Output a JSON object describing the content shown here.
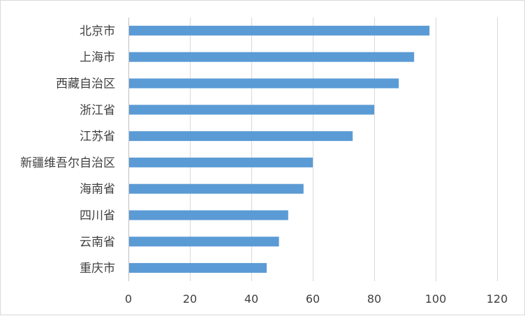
{
  "chart_data": {
    "type": "bar",
    "orientation": "horizontal",
    "categories": [
      "北京市",
      "上海市",
      "西藏自治区",
      "浙江省",
      "江苏省",
      "新疆维吾尔自治区",
      "海南省",
      "四川省",
      "云南省",
      "重庆市"
    ],
    "values": [
      98,
      93,
      88,
      80,
      73,
      60,
      57,
      52,
      49,
      45
    ],
    "xlim": [
      0,
      120
    ],
    "xticks": [
      0,
      20,
      40,
      60,
      80,
      100,
      120
    ],
    "grid": true,
    "legend": "none",
    "bar_color": "#5b9bd5",
    "title": "",
    "xlabel": "",
    "ylabel": ""
  }
}
